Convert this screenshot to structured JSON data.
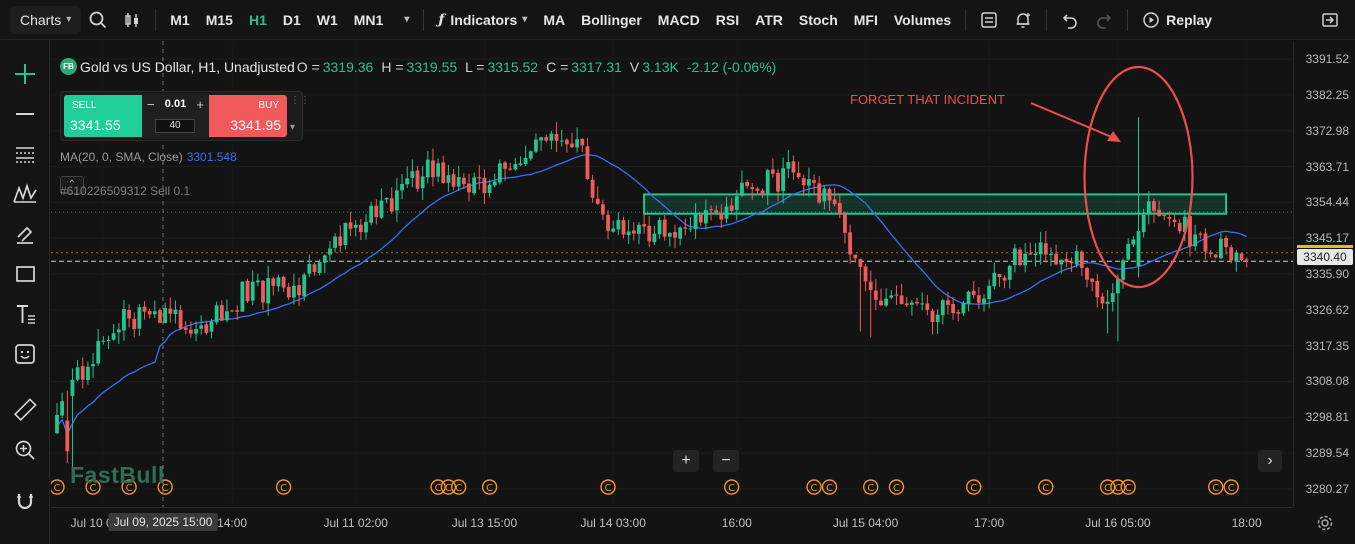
{
  "toolbar": {
    "charts_label": "Charts",
    "timeframes": [
      "M1",
      "M15",
      "H1",
      "D1",
      "W1",
      "MN1"
    ],
    "active_timeframe": "H1",
    "indicators_label": "Indicators",
    "indicator_shortcuts": [
      "MA",
      "Bollinger",
      "MACD",
      "RSI",
      "ATR",
      "Stoch",
      "MFI",
      "Volumes"
    ],
    "replay_label": "Replay"
  },
  "left_tools": [
    "crosshair-icon",
    "horizontal-line-icon",
    "fib-icon",
    "pattern-icon",
    "brush-icon",
    "rectangle-icon",
    "text-icon",
    "emoji-icon",
    "ruler-icon",
    "zoom-in-icon",
    "magnet-icon"
  ],
  "legend": {
    "symbol": "Gold vs US Dollar, H1, Unadjusted",
    "badge": "FB",
    "o_label": "O =",
    "o_val": "3319.36",
    "h_label": "H =",
    "h_val": "3319.55",
    "l_label": "L =",
    "l_val": "3315.52",
    "c_label": "C =",
    "c_val": "3317.31",
    "v_label": "V",
    "v_val": "3.13K",
    "change": "-2.12 (-0.06%)"
  },
  "trade_panel": {
    "sell_label": "SELL",
    "sell_price": "3341.55",
    "buy_label": "BUY",
    "buy_price": "3341.95",
    "quantity": "0.01",
    "spread": "40"
  },
  "ma_legend": {
    "label": "MA(20, 0, SMA, Close)",
    "value": "3301.548"
  },
  "order_line": "#610226509312 Sell 0.1",
  "annotation": "FORGET THAT INCIDENT",
  "watermark": "FastBull",
  "yaxis_ticks": [
    "3391.52",
    "3382.25",
    "3372.98",
    "3363.71",
    "3354.44",
    "3345.17",
    "3335.90",
    "3326.62",
    "3317.35",
    "3308.08",
    "3298.81",
    "3289.54",
    "3280.27"
  ],
  "current_price": "3340.40",
  "xaxis_ticks": [
    "Jul 10 01:00",
    "14:00",
    "Jul 11 02:00",
    "Jul 13 15:00",
    "Jul 14 03:00",
    "16:00",
    "Jul 15 04:00",
    "17:00",
    "Jul 16 05:00",
    "18:00"
  ],
  "cursor_time": "Jul 09, 2025 15:00",
  "colors": {
    "up": "#23c48e",
    "down": "#f15a5a",
    "ma": "#3b6ef5",
    "annotation": "#ef4c4c",
    "zone": "#23c48e"
  },
  "chart_data": {
    "type": "candlestick",
    "symbol": "XAUUSD",
    "timeframe": "H1",
    "ylim": [
      3275.6,
      3396.2
    ],
    "x_labels": [
      "Jul 10 01:00",
      "14:00",
      "Jul 11 02:00",
      "Jul 13 15:00",
      "Jul 14 03:00",
      "16:00",
      "Jul 15 04:00",
      "17:00",
      "Jul 16 05:00",
      "18:00"
    ],
    "anchors": [
      [
        0,
        3300
      ],
      [
        10,
        3322
      ],
      [
        18,
        3327
      ],
      [
        28,
        3322
      ],
      [
        36,
        3331
      ],
      [
        47,
        3333
      ],
      [
        56,
        3347
      ],
      [
        63,
        3353
      ],
      [
        72,
        3364
      ],
      [
        82,
        3358
      ],
      [
        90,
        3368
      ],
      [
        97,
        3373
      ],
      [
        102,
        3367
      ],
      [
        106,
        3350
      ],
      [
        112,
        3347
      ],
      [
        126,
        3350
      ],
      [
        133,
        3357
      ],
      [
        143,
        3363
      ],
      [
        150,
        3355
      ],
      [
        156,
        3338
      ],
      [
        158,
        3330
      ],
      [
        170,
        3327
      ],
      [
        180,
        3331
      ],
      [
        186,
        3340
      ],
      [
        192,
        3342
      ],
      [
        198,
        3339
      ],
      [
        204,
        3329
      ],
      [
        208,
        3344
      ],
      [
        212,
        3354
      ],
      [
        217,
        3350
      ],
      [
        224,
        3343
      ],
      [
        229,
        3341
      ]
    ],
    "ma_series": {
      "name": "MA(20, 0, SMA, Close)",
      "last_value": 3301.548
    },
    "current_price": 3340.4,
    "order_price": 3351.9,
    "zone": {
      "from_index": 114,
      "to_index": 227,
      "low": 3351.5,
      "high": 3356.5
    }
  }
}
